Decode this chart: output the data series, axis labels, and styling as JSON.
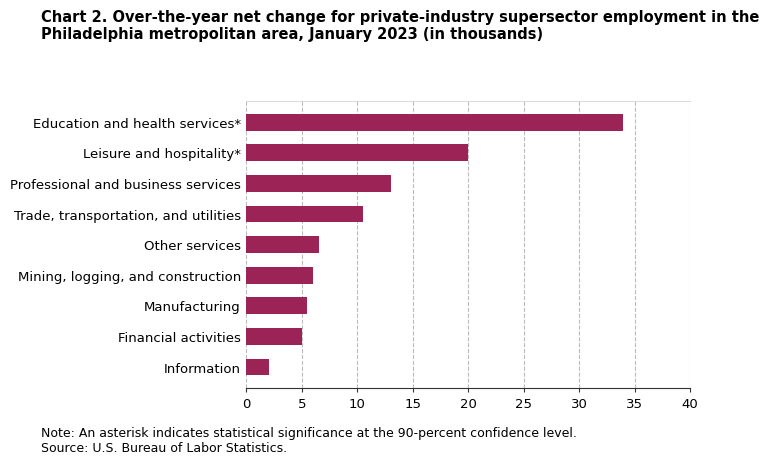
{
  "title_line1": "Chart 2. Over-the-year net change for private-industry supersector employment in the",
  "title_line2": "Philadelphia metropolitan area, January 2023 (in thousands)",
  "categories": [
    "Information",
    "Financial activities",
    "Manufacturing",
    "Mining, logging, and construction",
    "Other services",
    "Trade, transportation, and utilities",
    "Professional and business services",
    "Leisure and hospitality*",
    "Education and health services*"
  ],
  "values": [
    2,
    5,
    5.5,
    6,
    6.5,
    10.5,
    13,
    20,
    34
  ],
  "bar_color": "#9b2355",
  "xlim": [
    0,
    40
  ],
  "xticks": [
    0,
    5,
    10,
    15,
    20,
    25,
    30,
    35,
    40
  ],
  "note": "Note: An asterisk indicates statistical significance at the 90-percent confidence level.",
  "source": "Source: U.S. Bureau of Labor Statistics.",
  "title_fontsize": 10.5,
  "tick_fontsize": 9.5,
  "label_fontsize": 9.5,
  "note_fontsize": 9
}
